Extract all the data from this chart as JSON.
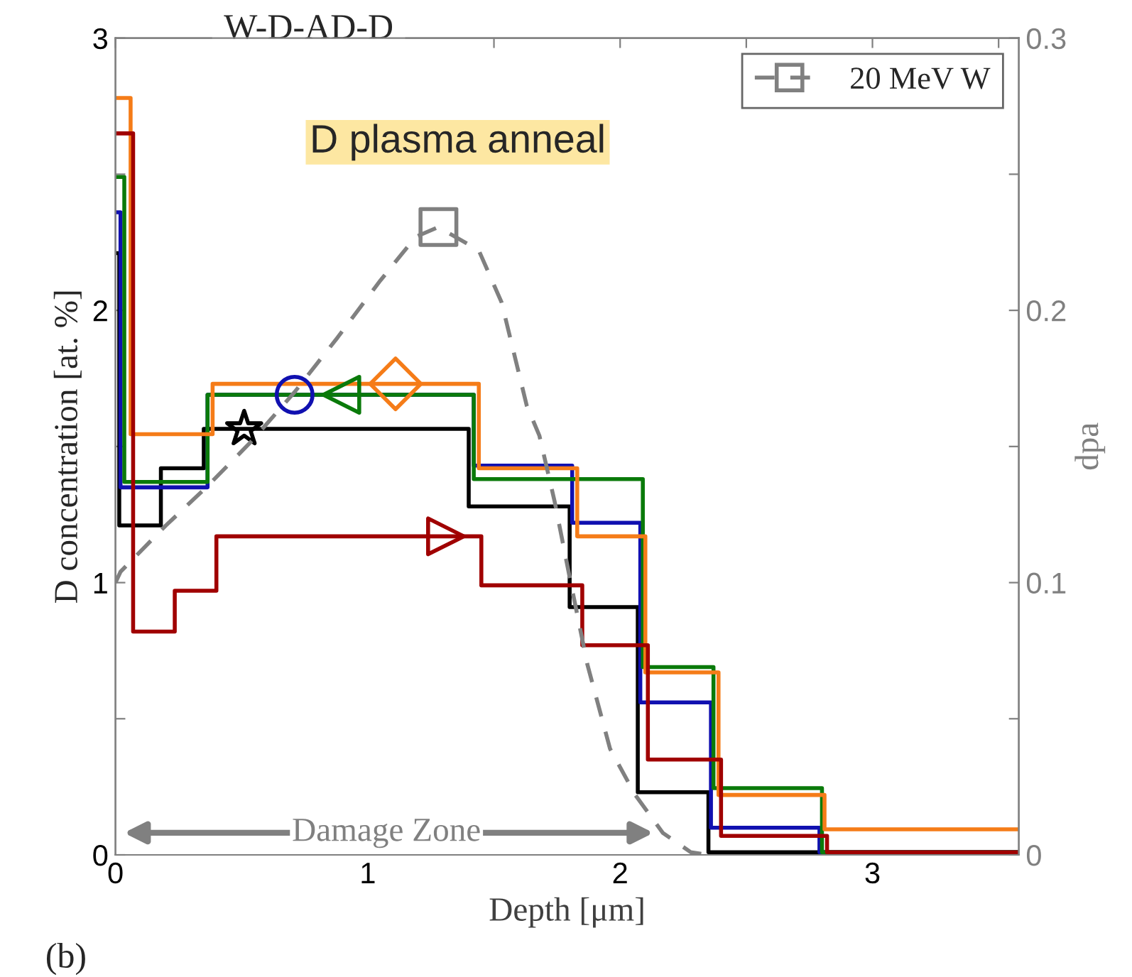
{
  "chart_data": {
    "type": "step",
    "title": "W-D-AD-D",
    "xlabel": "Depth [μm]",
    "ylabel": "D concentration [at. %]",
    "y2label": "dpa",
    "xlim": [
      0,
      3.58
    ],
    "xticks": [
      0,
      {
        "value": 0.5,
        "label": null
      },
      1,
      {
        "value": 1.5,
        "label": null
      },
      2,
      {
        "value": 2.5,
        "label": null
      },
      3,
      {
        "value": 3.5,
        "label": null
      }
    ],
    "ylim": [
      0,
      3
    ],
    "yticks": [
      0,
      {
        "value": 0.5,
        "label": null
      },
      1,
      {
        "value": 1.5,
        "label": null
      },
      2,
      {
        "value": 2.5,
        "label": null
      },
      3
    ],
    "y2lim": [
      0,
      0.3
    ],
    "y2ticks": [
      0,
      {
        "value": 0.05,
        "label": null
      },
      0.1,
      {
        "value": 0.15,
        "label": null
      },
      0.2,
      {
        "value": 0.25,
        "label": null
      },
      0.3
    ],
    "grid": false,
    "legend": "top right",
    "series": [
      {
        "color": "#000000",
        "x": [
          0,
          0.015,
          0.18,
          0.35,
          1.4,
          1.8,
          2.07,
          2.35,
          3.58
        ],
        "values": [
          2.21,
          1.21,
          1.42,
          1.565,
          1.28,
          0.91,
          0.23,
          0.01,
          0.01
        ]
      },
      {
        "color": "#1010b0",
        "x": [
          0,
          0.02,
          0.365,
          1.42,
          1.81,
          2.08,
          2.36,
          2.79,
          3.58
        ],
        "values": [
          2.36,
          1.35,
          1.69,
          1.43,
          1.22,
          0.56,
          0.1,
          0.01,
          0.01
        ]
      },
      {
        "color": "#0a7a0a",
        "x": [
          0,
          0.035,
          0.365,
          1.42,
          2.09,
          2.37,
          2.8,
          3.58
        ],
        "values": [
          2.49,
          1.37,
          1.69,
          1.38,
          0.69,
          0.245,
          0.01,
          0.01
        ]
      },
      {
        "color": "#f57c18",
        "x": [
          0,
          0.06,
          0.385,
          1.44,
          1.83,
          2.1,
          2.39,
          2.81,
          3.58
        ],
        "values": [
          2.78,
          1.545,
          1.73,
          1.42,
          1.17,
          0.67,
          0.22,
          0.094,
          0.094
        ]
      },
      {
        "color": "#a00000",
        "x": [
          0,
          0.07,
          0.235,
          0.4,
          1.45,
          1.85,
          2.11,
          2.4,
          2.82,
          3.58
        ],
        "values": [
          2.65,
          0.82,
          0.97,
          1.17,
          0.99,
          0.77,
          0.35,
          0.07,
          0.01,
          0.01
        ]
      },
      {
        "type": "scatter",
        "color": "#000000",
        "marker": "star",
        "x": [
          0.51
        ],
        "values": [
          1.565
        ]
      },
      {
        "type": "scatter",
        "color": "#1010b0",
        "marker": "circle",
        "x": [
          0.71
        ],
        "values": [
          1.69
        ]
      },
      {
        "type": "scatter",
        "color": "#0a7a0a",
        "marker": "triangle_left",
        "x": [
          0.895
        ],
        "values": [
          1.69
        ]
      },
      {
        "type": "scatter",
        "color": "#f57c18",
        "marker": "diamond",
        "x": [
          1.11
        ],
        "values": [
          1.73
        ]
      },
      {
        "type": "scatter",
        "color": "#a00000",
        "marker": "triangle_right",
        "x": [
          1.31
        ],
        "values": [
          1.17
        ]
      },
      {
        "type": "line",
        "axis": "y2",
        "name": "20 MeV W",
        "color": "#808080",
        "line_style": "dashed",
        "x": [
          0,
          0.02,
          0.2,
          0.36,
          0.54,
          0.71,
          0.88,
          1.05,
          1.19,
          1.28,
          1.44,
          1.53,
          1.63,
          1.68,
          1.74,
          1.8,
          1.87,
          1.96,
          2.06,
          2.17,
          2.28,
          2.35
        ],
        "values": [
          0.1,
          0.104,
          0.121,
          0.135,
          0.152,
          0.17,
          0.19,
          0.211,
          0.227,
          0.2306,
          0.222,
          0.203,
          0.165,
          0.154,
          0.13,
          0.102,
          0.07,
          0.039,
          0.022,
          0.008,
          0.001,
          0
        ]
      },
      {
        "type": "scatter",
        "axis": "y2",
        "color": "#808080",
        "marker": "square",
        "x": [
          1.28
        ],
        "values": [
          0.2306
        ]
      }
    ],
    "annotations": [
      "D plasma anneal",
      "(b)",
      "Damage Zone"
    ]
  }
}
